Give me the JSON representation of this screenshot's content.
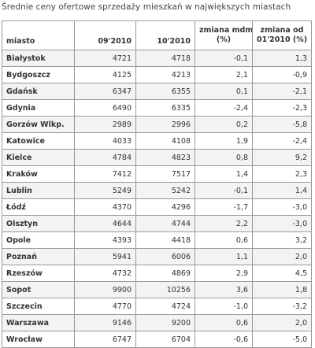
{
  "caption": "Średnie ceny ofertowe sprzedaży mieszkań w największych miastach",
  "headers": {
    "city": "miasto",
    "p1": "09'2010",
    "p2": "10'2010",
    "mdm_l1": "zmiana mdm",
    "mdm_l2": "(%)",
    "ytd_l1": "zmiana od",
    "ytd_l2": "01'2010 (%)"
  },
  "rows": [
    {
      "city": "Białystok",
      "p1": "4721",
      "p2": "4718",
      "mdm": "-0,1",
      "ytd": "1,3"
    },
    {
      "city": "Bydgoszcz",
      "p1": "4125",
      "p2": "4213",
      "mdm": "2,1",
      "ytd": "-0,9"
    },
    {
      "city": "Gdańsk",
      "p1": "6347",
      "p2": "6355",
      "mdm": "0,1",
      "ytd": "-2,1"
    },
    {
      "city": "Gdynia",
      "p1": "6490",
      "p2": "6335",
      "mdm": "-2,4",
      "ytd": "-2,3"
    },
    {
      "city": "Gorzów Wlkp.",
      "p1": "2989",
      "p2": "2996",
      "mdm": "0,2",
      "ytd": "-5,8"
    },
    {
      "city": "Katowice",
      "p1": "4033",
      "p2": "4108",
      "mdm": "1,9",
      "ytd": "-2,4"
    },
    {
      "city": "Kielce",
      "p1": "4784",
      "p2": "4823",
      "mdm": "0,8",
      "ytd": "9,2"
    },
    {
      "city": "Kraków",
      "p1": "7412",
      "p2": "7517",
      "mdm": "1,4",
      "ytd": "2,3"
    },
    {
      "city": "Lublin",
      "p1": "5249",
      "p2": "5242",
      "mdm": "-0,1",
      "ytd": "1,4"
    },
    {
      "city": "Łódź",
      "p1": "4370",
      "p2": "4296",
      "mdm": "-1,7",
      "ytd": "-3,0"
    },
    {
      "city": "Olsztyn",
      "p1": "4644",
      "p2": "4744",
      "mdm": "2,2",
      "ytd": "-3,0"
    },
    {
      "city": "Opole",
      "p1": "4393",
      "p2": "4418",
      "mdm": "0,6",
      "ytd": "3,2"
    },
    {
      "city": "Poznań",
      "p1": "5941",
      "p2": "6006",
      "mdm": "1,1",
      "ytd": "2,0"
    },
    {
      "city": "Rzeszów",
      "p1": "4732",
      "p2": "4869",
      "mdm": "2,9",
      "ytd": "4,5"
    },
    {
      "city": "Sopot",
      "p1": "9900",
      "p2": "10256",
      "mdm": "3,6",
      "ytd": "1,8"
    },
    {
      "city": "Szczecin",
      "p1": "4770",
      "p2": "4724",
      "mdm": "-1,0",
      "ytd": "-3,2"
    },
    {
      "city": "Warszawa",
      "p1": "9146",
      "p2": "9200",
      "mdm": "0,6",
      "ytd": "2,0"
    },
    {
      "city": "Wrocław",
      "p1": "6747",
      "p2": "6704",
      "mdm": "-0,6",
      "ytd": "-5,0"
    }
  ]
}
